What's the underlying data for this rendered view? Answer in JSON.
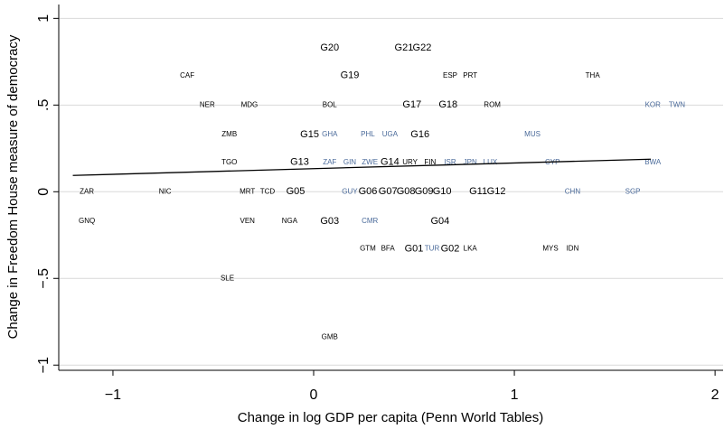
{
  "chart_data": {
    "type": "scatter",
    "xlabel": "Change in log GDP per capita (Penn World Tables)",
    "ylabel": "Change in Freedom House measure of democracy",
    "xlim": [
      -1.27,
      2.04
    ],
    "ylim": [
      -1.03,
      1.08
    ],
    "xticks": [
      {
        "value": -1,
        "label": "−1"
      },
      0,
      1,
      2
    ],
    "yticks": [
      {
        "value": -1,
        "label": "−1"
      },
      {
        "value": -0.5,
        "label": "−.5"
      },
      0,
      {
        "value": 0.5,
        "label": ".5"
      },
      1
    ],
    "grid": true,
    "series": [
      {
        "color": "#000000",
        "labels": [
          "G20",
          "G21",
          "G22",
          "G19",
          "G17",
          "G18",
          "G15",
          "G16",
          "G13",
          "G14",
          "G05",
          "G06",
          "G07",
          "G08",
          "G09",
          "G10",
          "G11",
          "G12",
          "G03",
          "G04",
          "G01",
          "G02"
        ],
        "x": [
          0.08,
          0.45,
          0.54,
          0.18,
          0.49,
          0.67,
          -0.02,
          0.53,
          -0.07,
          0.38,
          -0.09,
          0.27,
          0.37,
          0.46,
          0.55,
          0.64,
          0.82,
          0.91,
          0.08,
          0.63,
          0.5,
          0.68
        ],
        "y": [
          0.83,
          0.83,
          0.83,
          0.67,
          0.5,
          0.5,
          0.33,
          0.33,
          0.17,
          0.17,
          0,
          0,
          0,
          0,
          0,
          0,
          0,
          0,
          -0.17,
          -0.17,
          -0.33,
          -0.33
        ]
      },
      {
        "color": "#000000",
        "labels": [
          "CAF",
          "ESP",
          "PRT",
          "THA",
          "NER",
          "MDG",
          "BOL",
          "ROM",
          "ZMB",
          "TGO",
          "URY",
          "FIN",
          "ZAR",
          "NIC",
          "MRT",
          "TCD",
          "GNQ",
          "VEN",
          "NGA",
          "GTM",
          "BFA",
          "LKA",
          "MYS",
          "IDN",
          "SLE",
          "GMB"
        ],
        "x": [
          -0.63,
          0.68,
          0.78,
          1.39,
          -0.53,
          -0.32,
          0.08,
          0.89,
          -0.42,
          -0.42,
          0.48,
          0.58,
          -1.13,
          -0.74,
          -0.33,
          -0.23,
          -1.13,
          -0.33,
          -0.12,
          0.27,
          0.37,
          0.78,
          1.18,
          1.29,
          -0.43,
          0.08
        ],
        "y": [
          0.67,
          0.67,
          0.67,
          0.67,
          0.5,
          0.5,
          0.5,
          0.5,
          0.33,
          0.17,
          0.17,
          0.17,
          0,
          0,
          0,
          0,
          -0.17,
          -0.17,
          -0.17,
          -0.33,
          -0.33,
          -0.33,
          -0.33,
          -0.33,
          -0.5,
          -0.84
        ]
      },
      {
        "color": "#4a6a9a",
        "labels": [
          "KOR",
          "TWN",
          "GHA",
          "PHL",
          "UGA",
          "MUS",
          "ZAF",
          "GIN",
          "ZWE",
          "ISR",
          "JPN",
          "LUX",
          "CYP",
          "BWA",
          "GUY",
          "CHN",
          "SGP",
          "CMR",
          "TUR"
        ],
        "x": [
          1.69,
          1.81,
          0.08,
          0.27,
          0.38,
          1.09,
          0.08,
          0.18,
          0.28,
          0.68,
          0.78,
          0.88,
          1.19,
          1.69,
          0.18,
          1.29,
          1.59,
          0.28,
          0.59
        ],
        "y": [
          0.5,
          0.5,
          0.33,
          0.33,
          0.33,
          0.33,
          0.17,
          0.17,
          0.17,
          0.17,
          0.17,
          0.17,
          0.17,
          0.17,
          0,
          0,
          0,
          -0.17,
          -0.33
        ]
      }
    ],
    "fit_line": {
      "color": "#000000",
      "x": [
        -1.2,
        1.68
      ],
      "y": [
        0.094,
        0.188
      ]
    }
  }
}
